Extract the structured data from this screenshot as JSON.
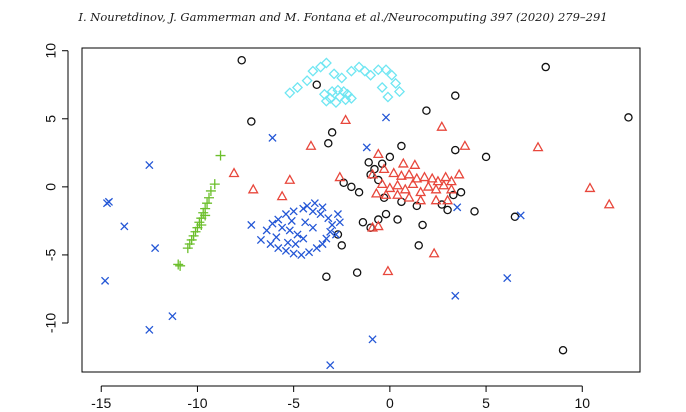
{
  "header": {
    "running_title": "I. Nouretdinov, J. Gammerman and M. Fontana et al./Neurocomputing 397 (2020) 279–291"
  },
  "colors": {
    "black_circles": "#111111",
    "red_triangles": "#e8473c",
    "green_plus": "#6cbf2c",
    "blue_x": "#2457d6",
    "cyan_diamonds": "#6fe6f2"
  },
  "chart_data": {
    "type": "scatter",
    "title": "",
    "xlabel": "",
    "ylabel": "",
    "xlim": [
      -16,
      13
    ],
    "ylim": [
      -13.6,
      10.2
    ],
    "xticks": [
      -15,
      -10,
      -5,
      0,
      5,
      10
    ],
    "yticks": [
      -10,
      -5,
      0,
      5,
      10
    ],
    "grid": false,
    "legend": "none",
    "series": [
      {
        "marker": "circle",
        "color": "black",
        "points": [
          [
            -7.7,
            9.3
          ],
          [
            8.1,
            8.8
          ],
          [
            -3.8,
            7.5
          ],
          [
            3.4,
            6.7
          ],
          [
            1.9,
            5.6
          ],
          [
            -7.2,
            4.8
          ],
          [
            12.4,
            5.1
          ],
          [
            -3.0,
            4.0
          ],
          [
            -3.2,
            3.2
          ],
          [
            0.6,
            3.0
          ],
          [
            3.4,
            2.7
          ],
          [
            5.0,
            2.2
          ],
          [
            0.0,
            2.2
          ],
          [
            -1.1,
            1.8
          ],
          [
            -0.4,
            1.7
          ],
          [
            -0.8,
            1.3
          ],
          [
            -1.0,
            0.9
          ],
          [
            -0.6,
            0.5
          ],
          [
            -2.4,
            0.3
          ],
          [
            -2.0,
            0.0
          ],
          [
            -1.6,
            -0.4
          ],
          [
            -0.3,
            -0.8
          ],
          [
            0.6,
            -1.1
          ],
          [
            1.4,
            -1.4
          ],
          [
            3.3,
            -0.6
          ],
          [
            3.7,
            -0.4
          ],
          [
            2.7,
            -1.3
          ],
          [
            3.0,
            -1.7
          ],
          [
            4.4,
            -1.8
          ],
          [
            -0.2,
            -2.0
          ],
          [
            -0.6,
            -2.4
          ],
          [
            -1.4,
            -2.6
          ],
          [
            0.4,
            -2.4
          ],
          [
            -2.7,
            -3.5
          ],
          [
            -1.0,
            -3.0
          ],
          [
            1.7,
            -2.8
          ],
          [
            -2.5,
            -4.3
          ],
          [
            1.5,
            -4.3
          ],
          [
            -3.3,
            -6.6
          ],
          [
            -1.7,
            -6.3
          ],
          [
            6.5,
            -2.2
          ],
          [
            9.0,
            -12.0
          ]
        ]
      },
      {
        "marker": "triangle",
        "color": "red",
        "points": [
          [
            -2.3,
            4.9
          ],
          [
            2.7,
            4.4
          ],
          [
            -4.1,
            3.0
          ],
          [
            3.9,
            3.0
          ],
          [
            7.7,
            2.9
          ],
          [
            -0.6,
            2.4
          ],
          [
            0.7,
            1.7
          ],
          [
            1.3,
            1.6
          ],
          [
            -8.1,
            1.0
          ],
          [
            -2.6,
            0.7
          ],
          [
            -5.2,
            0.5
          ],
          [
            -7.1,
            -0.2
          ],
          [
            -5.6,
            -0.7
          ],
          [
            10.4,
            -0.1
          ],
          [
            11.4,
            -1.3
          ],
          [
            -0.9,
            0.9
          ],
          [
            -0.3,
            1.3
          ],
          [
            0.2,
            1.0
          ],
          [
            0.6,
            0.8
          ],
          [
            1.0,
            0.9
          ],
          [
            1.4,
            0.6
          ],
          [
            1.8,
            0.7
          ],
          [
            2.2,
            0.6
          ],
          [
            2.5,
            0.4
          ],
          [
            2.9,
            0.7
          ],
          [
            3.2,
            0.4
          ],
          [
            3.6,
            0.9
          ],
          [
            3.2,
            -0.2
          ],
          [
            2.8,
            0.1
          ],
          [
            -0.4,
            0.2
          ],
          [
            0.0,
            -0.1
          ],
          [
            0.4,
            0.1
          ],
          [
            0.8,
            -0.2
          ],
          [
            1.2,
            0.2
          ],
          [
            1.6,
            -0.4
          ],
          [
            2.0,
            0.0
          ],
          [
            2.4,
            -0.2
          ],
          [
            -0.7,
            -0.5
          ],
          [
            -0.2,
            -0.6
          ],
          [
            0.4,
            -0.6
          ],
          [
            1.0,
            -0.8
          ],
          [
            1.6,
            -1.0
          ],
          [
            2.4,
            -1.0
          ],
          [
            3.0,
            -1.0
          ],
          [
            -0.6,
            -2.9
          ],
          [
            -0.9,
            -3.0
          ],
          [
            2.3,
            -4.9
          ],
          [
            -0.1,
            -6.2
          ]
        ]
      },
      {
        "marker": "plus",
        "color": "green",
        "points": [
          [
            -8.8,
            2.3
          ],
          [
            -9.1,
            0.2
          ],
          [
            -9.3,
            -0.3
          ],
          [
            -9.4,
            -0.8
          ],
          [
            -9.5,
            -1.2
          ],
          [
            -9.6,
            -1.6
          ],
          [
            -9.7,
            -1.9
          ],
          [
            -9.6,
            -2.1
          ],
          [
            -9.8,
            -2.3
          ],
          [
            -9.9,
            -2.6
          ],
          [
            -9.8,
            -2.8
          ],
          [
            -10.0,
            -3.0
          ],
          [
            -10.1,
            -3.3
          ],
          [
            -10.2,
            -3.6
          ],
          [
            -10.3,
            -3.9
          ],
          [
            -10.4,
            -4.2
          ],
          [
            -10.5,
            -4.5
          ],
          [
            -10.9,
            -5.8
          ],
          [
            -11.0,
            -5.7
          ]
        ]
      },
      {
        "marker": "x",
        "color": "blue",
        "points": [
          [
            -14.6,
            -1.1
          ],
          [
            -14.7,
            -1.2
          ],
          [
            -12.5,
            1.6
          ],
          [
            -6.1,
            3.6
          ],
          [
            -0.2,
            5.1
          ],
          [
            -13.8,
            -2.9
          ],
          [
            -12.2,
            -4.5
          ],
          [
            -14.8,
            -6.9
          ],
          [
            -12.5,
            -10.5
          ],
          [
            -11.3,
            -9.5
          ],
          [
            -7.2,
            -2.8
          ],
          [
            -6.4,
            -3.2
          ],
          [
            -6.7,
            -3.9
          ],
          [
            -6.2,
            -4.2
          ],
          [
            -5.8,
            -4.5
          ],
          [
            -5.4,
            -4.7
          ],
          [
            -5.0,
            -4.9
          ],
          [
            -4.6,
            -5.0
          ],
          [
            -4.2,
            -4.8
          ],
          [
            -3.8,
            -4.5
          ],
          [
            -3.5,
            -4.2
          ],
          [
            -3.3,
            -3.8
          ],
          [
            -3.1,
            -3.3
          ],
          [
            -3.0,
            -2.8
          ],
          [
            -3.2,
            -2.3
          ],
          [
            -3.6,
            -2.0
          ],
          [
            -4.0,
            -1.8
          ],
          [
            -4.5,
            -1.6
          ],
          [
            -5.0,
            -1.8
          ],
          [
            -5.4,
            -2.0
          ],
          [
            -5.8,
            -2.4
          ],
          [
            -6.1,
            -2.7
          ],
          [
            -5.6,
            -3.0
          ],
          [
            -5.2,
            -3.2
          ],
          [
            -4.8,
            -3.5
          ],
          [
            -4.5,
            -3.8
          ],
          [
            -4.9,
            -4.2
          ],
          [
            -5.3,
            -4.1
          ],
          [
            -5.9,
            -3.7
          ],
          [
            -3.5,
            -1.5
          ],
          [
            -3.9,
            -1.2
          ],
          [
            -4.3,
            -1.4
          ],
          [
            -2.7,
            -2.0
          ],
          [
            -2.6,
            -2.6
          ],
          [
            -2.8,
            -3.5
          ],
          [
            -4.0,
            -3.0
          ],
          [
            -4.4,
            -2.6
          ],
          [
            -5.1,
            -2.5
          ],
          [
            -1.2,
            2.9
          ],
          [
            3.5,
            -1.5
          ],
          [
            6.8,
            -2.1
          ],
          [
            3.4,
            -8.0
          ],
          [
            6.1,
            -6.7
          ],
          [
            -0.9,
            -11.2
          ],
          [
            -3.1,
            -13.1
          ]
        ]
      },
      {
        "marker": "diamond",
        "color": "cyan",
        "points": [
          [
            -5.2,
            6.9
          ],
          [
            -4.8,
            7.3
          ],
          [
            -4.3,
            7.8
          ],
          [
            -4.0,
            8.5
          ],
          [
            -3.6,
            8.8
          ],
          [
            -3.3,
            9.1
          ],
          [
            -2.9,
            8.3
          ],
          [
            -2.5,
            8.0
          ],
          [
            -2.0,
            8.5
          ],
          [
            -1.6,
            8.8
          ],
          [
            -1.3,
            8.5
          ],
          [
            -1.0,
            8.2
          ],
          [
            -0.6,
            8.6
          ],
          [
            -0.2,
            8.6
          ],
          [
            0.1,
            8.2
          ],
          [
            0.3,
            7.6
          ],
          [
            0.5,
            7.0
          ],
          [
            -0.4,
            7.3
          ],
          [
            -0.1,
            6.6
          ],
          [
            -3.4,
            6.8
          ],
          [
            -3.0,
            7.0
          ],
          [
            -2.7,
            7.1
          ],
          [
            -2.4,
            7.0
          ],
          [
            -2.2,
            6.8
          ],
          [
            -2.0,
            6.5
          ],
          [
            -2.6,
            6.6
          ],
          [
            -3.1,
            6.5
          ],
          [
            -3.3,
            6.3
          ],
          [
            -2.8,
            6.2
          ],
          [
            -2.3,
            6.4
          ]
        ]
      }
    ]
  }
}
